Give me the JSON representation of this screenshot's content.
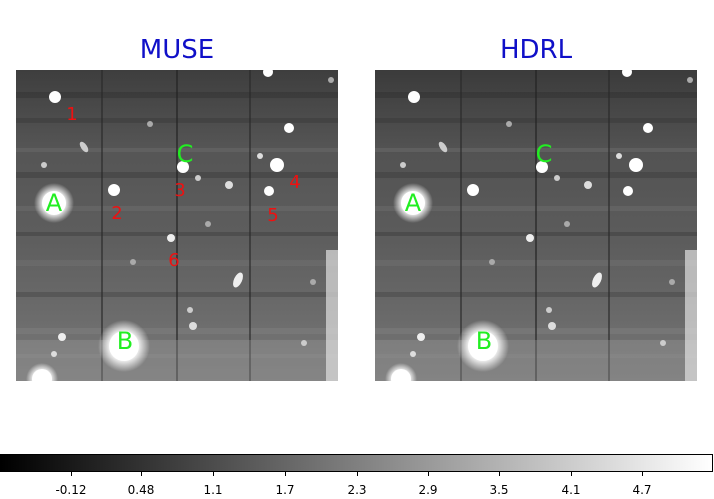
{
  "panels": [
    {
      "title": "MUSE",
      "green_labels": [
        "A",
        "B",
        "C"
      ],
      "red_labels": [
        "1",
        "2",
        "3",
        "4",
        "5",
        "6"
      ]
    },
    {
      "title": "HDRL",
      "green_labels": [
        "A",
        "B",
        "C"
      ],
      "red_labels": []
    }
  ],
  "colorbar": {
    "ticks": [
      "-0.12",
      "0.48",
      "1.1",
      "1.7",
      "2.3",
      "2.9",
      "3.5",
      "4.1",
      "4.7"
    ]
  },
  "colors": {
    "title": "#1010c8",
    "label_green": "#22ee22",
    "label_red": "#ee1111"
  }
}
